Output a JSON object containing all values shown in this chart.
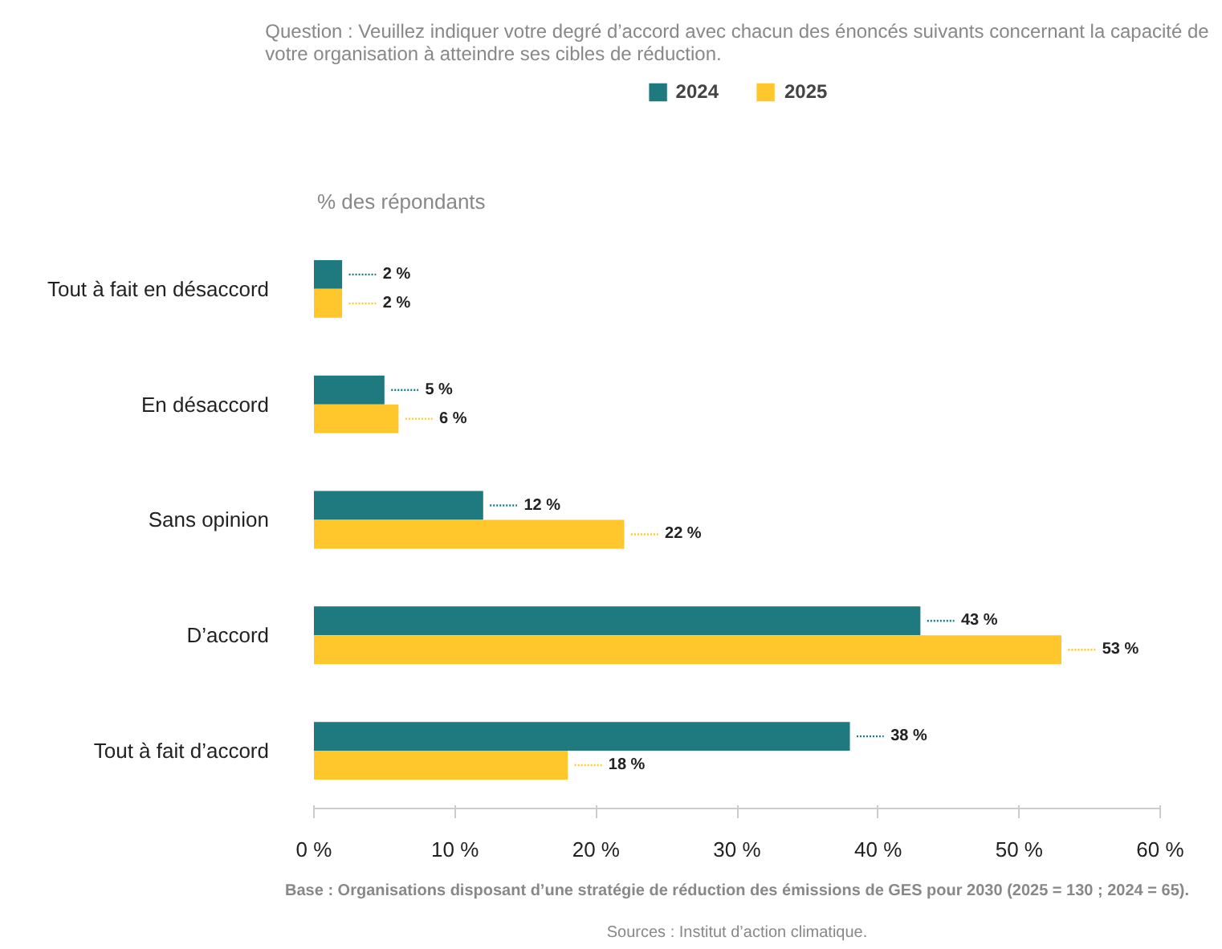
{
  "chart_data": {
    "type": "bar",
    "orientation": "horizontal",
    "title": "Question : Veuillez indiquer votre degré d’accord avec chacun des énoncés suivants concernant la capacité de\nvotre organisation à atteindre ses cibles de réduction.",
    "xlabel": "% des répondants",
    "categories": [
      "Tout à fait en désaccord",
      "En désaccord",
      "Sans opinion",
      "D’accord",
      "Tout à fait d’accord"
    ],
    "series": [
      {
        "name": "2024",
        "color": "#1f7a80",
        "values": [
          2,
          5,
          12,
          43,
          38
        ],
        "value_labels": [
          "2 %",
          "5 %",
          "12 %",
          "43 %",
          "38 %"
        ]
      },
      {
        "name": "2025",
        "color": "#ffc72c",
        "values": [
          2,
          6,
          22,
          53,
          18
        ],
        "value_labels": [
          "2 %",
          "6 %",
          "22 %",
          "53 %",
          "18 %"
        ]
      }
    ],
    "xlim": [
      0,
      60
    ],
    "xticks": [
      {
        "value": 0,
        "label": "0 %"
      },
      {
        "value": 10,
        "label": "10 %"
      },
      {
        "value": 20,
        "label": "20 %"
      },
      {
        "value": 30,
        "label": "30 %"
      },
      {
        "value": 40,
        "label": "40 %"
      },
      {
        "value": 50,
        "label": "50 %"
      },
      {
        "value": 60,
        "label": "60 %"
      }
    ],
    "grid": false,
    "legend": "top",
    "annotations": [
      "Base : Organisations disposant d’une stratégie de réduction des émissions de GES pour 2030 (2025 = 130 ; 2024 = 65).",
      "Sources : Institut d’action climatique."
    ]
  }
}
